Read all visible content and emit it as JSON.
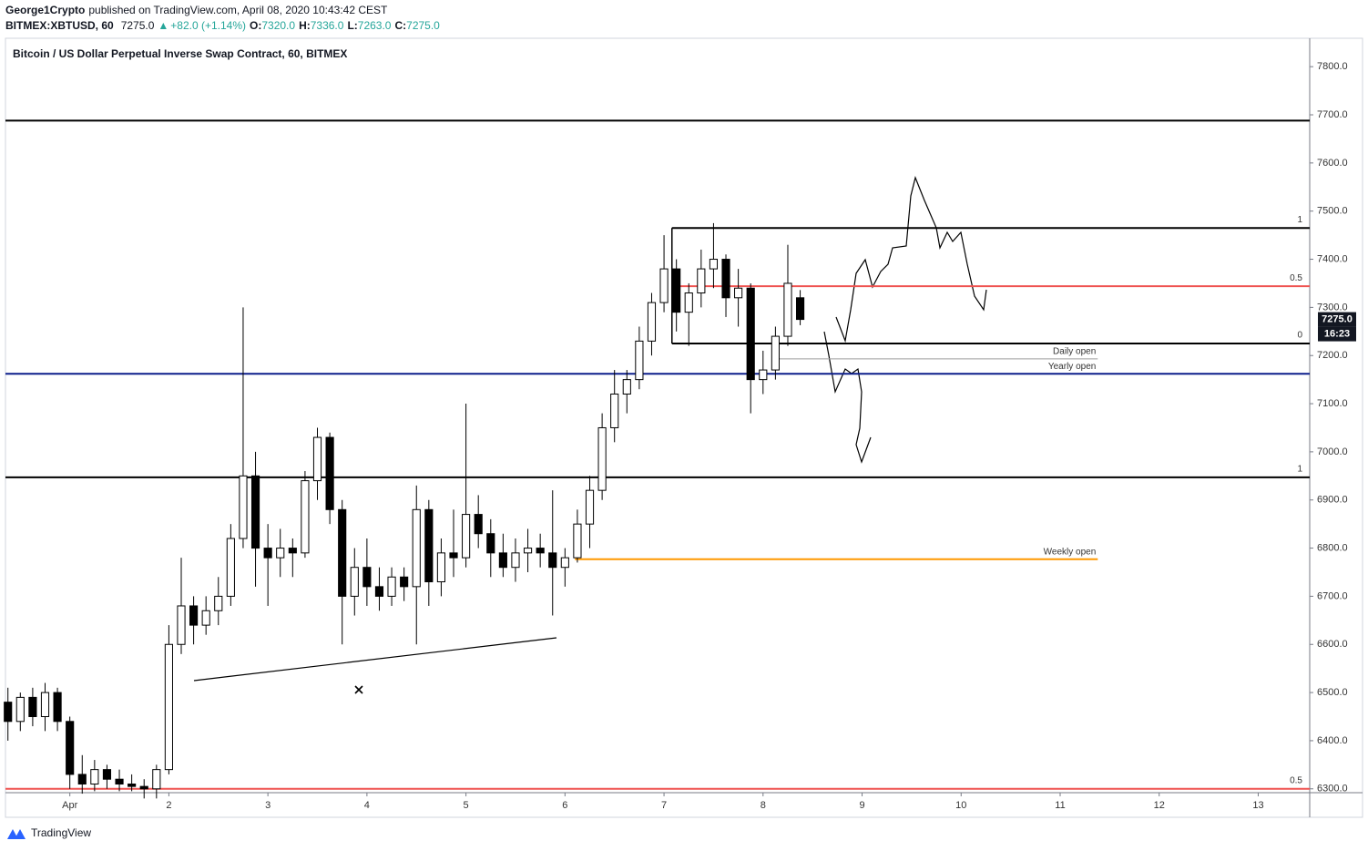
{
  "header": {
    "author": "George1Crypto",
    "published": "published on TradingView.com, April 08, 2020 10:43:42 CEST",
    "symbol": "BITMEX:XBTUSD, 60",
    "last": "7275.0",
    "arrow": "▲",
    "change": "+82.0 (+1.14%)",
    "ohlc": [
      {
        "label": "O:",
        "value": "7320.0"
      },
      {
        "label": "H:",
        "value": "7336.0"
      },
      {
        "label": "L:",
        "value": "7263.0"
      },
      {
        "label": "C:",
        "value": "7275.0"
      }
    ]
  },
  "footer": {
    "brand": "TradingView"
  },
  "chart_data": {
    "type": "candlestick",
    "title": "Bitcoin / US Dollar Perpetual Inverse Swap Contract, 60, BITMEX",
    "x": [
      0.375,
      0.5,
      0.625,
      0.75,
      0.875,
      1,
      1.125,
      1.25,
      1.375,
      1.5,
      1.625,
      1.75,
      1.875,
      2,
      2.125,
      2.25,
      2.375,
      2.5,
      2.625,
      2.75,
      2.875,
      3,
      3.125,
      3.25,
      3.375,
      3.5,
      3.625,
      3.75,
      3.875,
      4,
      4.125,
      4.25,
      4.375,
      4.5,
      4.625,
      4.75,
      4.875,
      5,
      5.125,
      5.25,
      5.375,
      5.5,
      5.625,
      5.75,
      5.875,
      6,
      6.125,
      6.25,
      6.375,
      6.5,
      6.625,
      6.75,
      6.875,
      7,
      7.125,
      7.25,
      7.375,
      7.5,
      7.625,
      7.75,
      7.875,
      8,
      8.125,
      8.25,
      8.375
    ],
    "open": [
      6480,
      6440,
      6490,
      6450,
      6500,
      6440,
      6330,
      6310,
      6340,
      6320,
      6310,
      6305,
      6300,
      6340,
      6600,
      6680,
      6640,
      6670,
      6700,
      6820,
      6950,
      6800,
      6780,
      6800,
      6790,
      6940,
      7030,
      6880,
      6700,
      6760,
      6720,
      6700,
      6740,
      6720,
      6880,
      6730,
      6790,
      6780,
      6870,
      6830,
      6790,
      6760,
      6790,
      6800,
      6790,
      6760,
      6780,
      6850,
      6920,
      7050,
      7120,
      7150,
      7230,
      7310,
      7380,
      7290,
      7330,
      7380,
      7400,
      7320,
      7340,
      7150,
      7170,
      7240,
      7320
    ],
    "high": [
      6510,
      6500,
      6510,
      6520,
      6510,
      6450,
      6370,
      6360,
      6350,
      6340,
      6330,
      6320,
      6350,
      6640,
      6780,
      6700,
      6700,
      6740,
      6850,
      7300,
      7000,
      6850,
      6840,
      6820,
      6960,
      7050,
      7040,
      6900,
      6800,
      6820,
      6760,
      6760,
      6760,
      6930,
      6900,
      6820,
      6880,
      7100,
      6910,
      6860,
      6830,
      6820,
      6840,
      6830,
      6920,
      6800,
      6880,
      6950,
      7080,
      7170,
      7170,
      7260,
      7330,
      7450,
      7400,
      7350,
      7420,
      7475,
      7410,
      7380,
      7350,
      7210,
      7260,
      7430,
      7336
    ],
    "low": [
      6400,
      6420,
      6430,
      6420,
      6420,
      6300,
      6290,
      6295,
      6300,
      6295,
      6295,
      6280,
      6280,
      6330,
      6580,
      6600,
      6620,
      6640,
      6680,
      6800,
      6720,
      6680,
      6740,
      6740,
      6780,
      6900,
      6850,
      6600,
      6660,
      6680,
      6670,
      6680,
      6690,
      6600,
      6680,
      6700,
      6740,
      6760,
      6800,
      6740,
      6740,
      6730,
      6750,
      6760,
      6660,
      6720,
      6770,
      6800,
      6900,
      7020,
      7080,
      7130,
      7200,
      7290,
      7250,
      7220,
      7300,
      7340,
      7280,
      7260,
      7080,
      7120,
      7150,
      7220,
      7263
    ],
    "close": [
      6440,
      6490,
      6450,
      6500,
      6440,
      6330,
      6310,
      6340,
      6320,
      6310,
      6305,
      6300,
      6340,
      6600,
      6680,
      6640,
      6670,
      6700,
      6820,
      6950,
      6800,
      6780,
      6800,
      6790,
      6940,
      7030,
      6880,
      6700,
      6760,
      6720,
      6700,
      6740,
      6720,
      6880,
      6730,
      6790,
      6780,
      6870,
      6830,
      6790,
      6760,
      6790,
      6800,
      6790,
      6760,
      6780,
      6850,
      6920,
      7050,
      7120,
      7150,
      7230,
      7310,
      7380,
      7290,
      7330,
      7380,
      7400,
      7320,
      7340,
      7150,
      7170,
      7240,
      7350,
      7275
    ],
    "up_color": "#ffffff",
    "down_color": "#000000",
    "outline_color": "#000000",
    "xlim": [
      0.35,
      13.52
    ],
    "xticks": [
      {
        "value": 1,
        "label": "Apr"
      },
      2,
      3,
      4,
      5,
      6,
      7,
      8,
      9,
      10,
      11,
      12,
      13
    ],
    "ylim": [
      6292,
      7859
    ],
    "yticks": [
      {
        "value": 6300,
        "label": "6300.0"
      },
      {
        "value": 6400,
        "label": "6400.0"
      },
      {
        "value": 6500,
        "label": "6500.0"
      },
      {
        "value": 6600,
        "label": "6600.0"
      },
      {
        "value": 6700,
        "label": "6700.0"
      },
      {
        "value": 6800,
        "label": "6800.0"
      },
      {
        "value": 6900,
        "label": "6900.0"
      },
      {
        "value": 7000,
        "label": "7000.0"
      },
      {
        "value": 7100,
        "label": "7100.0"
      },
      {
        "value": 7200,
        "label": "7200.0"
      },
      {
        "value": 7300,
        "label": "7300.0"
      },
      {
        "value": 7400,
        "label": "7400.0"
      },
      {
        "value": 7500,
        "label": "7500.0"
      },
      {
        "value": 7600,
        "label": "7600.0"
      },
      {
        "value": 7700,
        "label": "7700.0"
      },
      {
        "value": 7800,
        "label": "7800.0"
      }
    ],
    "grid": false,
    "levels": [
      {
        "value": 7688,
        "color": "#000000"
      },
      {
        "value": 7465,
        "color": "#000000",
        "x_range": [
          7.08,
          13.52
        ],
        "label": "1"
      },
      {
        "value": 7344,
        "color": "#ef5350",
        "x_range": [
          7.08,
          13.52
        ],
        "label": "0.5"
      },
      {
        "value": 7225,
        "color": "#000000",
        "x_range": [
          7.08,
          13.52
        ],
        "label": "0"
      },
      {
        "value": 7193,
        "color": "#9e9e9e",
        "x_range": [
          8.15,
          11.38
        ]
      },
      {
        "value": 7162,
        "color": "#0d1f8c"
      },
      {
        "value": 6947,
        "color": "#000000",
        "label": "1"
      },
      {
        "value": 6777,
        "color": "#ff9800",
        "x_range": [
          6.1,
          11.38
        ]
      },
      {
        "value": 6300,
        "color": "#ef5350",
        "label": "0.5"
      }
    ],
    "annotations": [
      {
        "text": "Daily open",
        "x": 11.38,
        "y": 7193
      },
      {
        "text": "Yearly open",
        "x": 11.38,
        "y": 7162
      },
      {
        "text": "Weekly open",
        "x": 11.38,
        "y": 6777
      }
    ],
    "price_tag": {
      "value": 7275,
      "label": "7275.0"
    },
    "countdown": "16:23"
  }
}
